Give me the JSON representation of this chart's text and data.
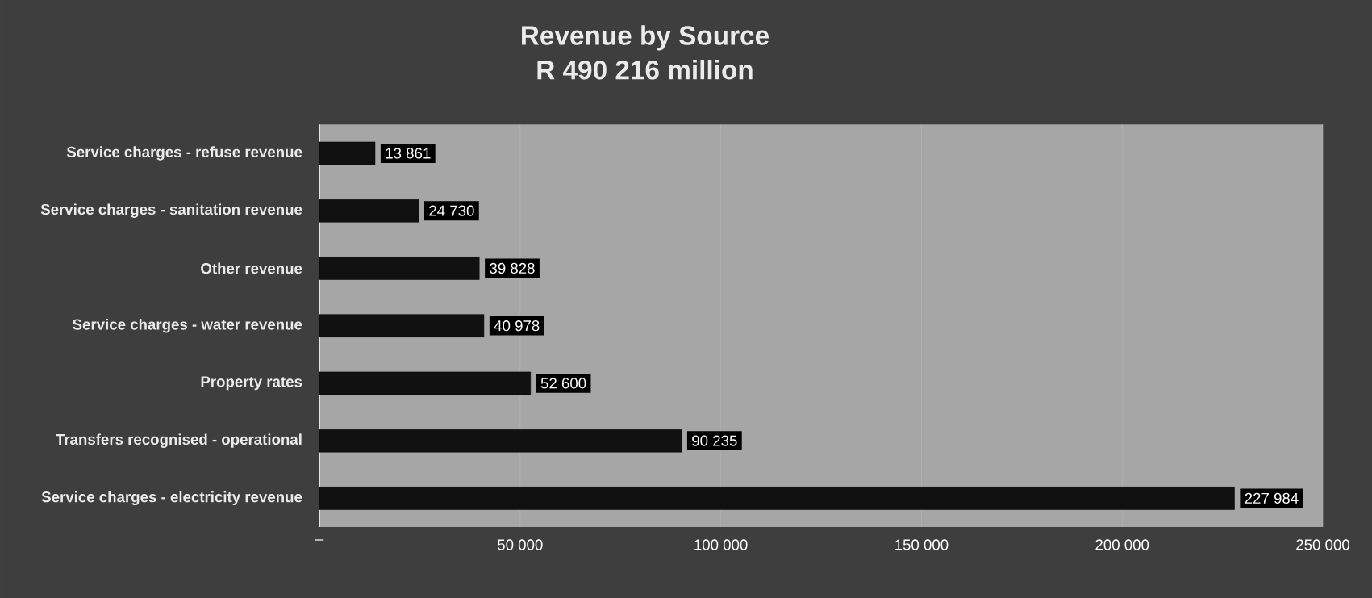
{
  "chart_data": {
    "type": "bar",
    "orientation": "horizontal",
    "title": "Revenue by Source",
    "subtitle": "R 490 216 million",
    "categories": [
      "Service charges - refuse revenue",
      "Service charges - sanitation revenue",
      "Other revenue",
      "Service charges - water revenue",
      "Property rates",
      "Transfers recognised - operational",
      "Service charges - electricity revenue"
    ],
    "values": [
      13861,
      24730,
      39828,
      40978,
      52600,
      90235,
      227984
    ],
    "value_labels": [
      "13 861",
      "24 730",
      "39 828",
      "40 978",
      "52 600",
      "90 235",
      "227 984"
    ],
    "color": "#111111",
    "xlim": [
      0,
      250000
    ],
    "xticks": [
      {
        "value": 0,
        "label": "–"
      },
      {
        "value": 50000,
        "label": "50 000"
      },
      {
        "value": 100000,
        "label": "100 000"
      },
      {
        "value": 150000,
        "label": "150 000"
      },
      {
        "value": 200000,
        "label": "200 000"
      },
      {
        "value": 250000,
        "label": "250 000"
      }
    ],
    "grid": "x"
  }
}
